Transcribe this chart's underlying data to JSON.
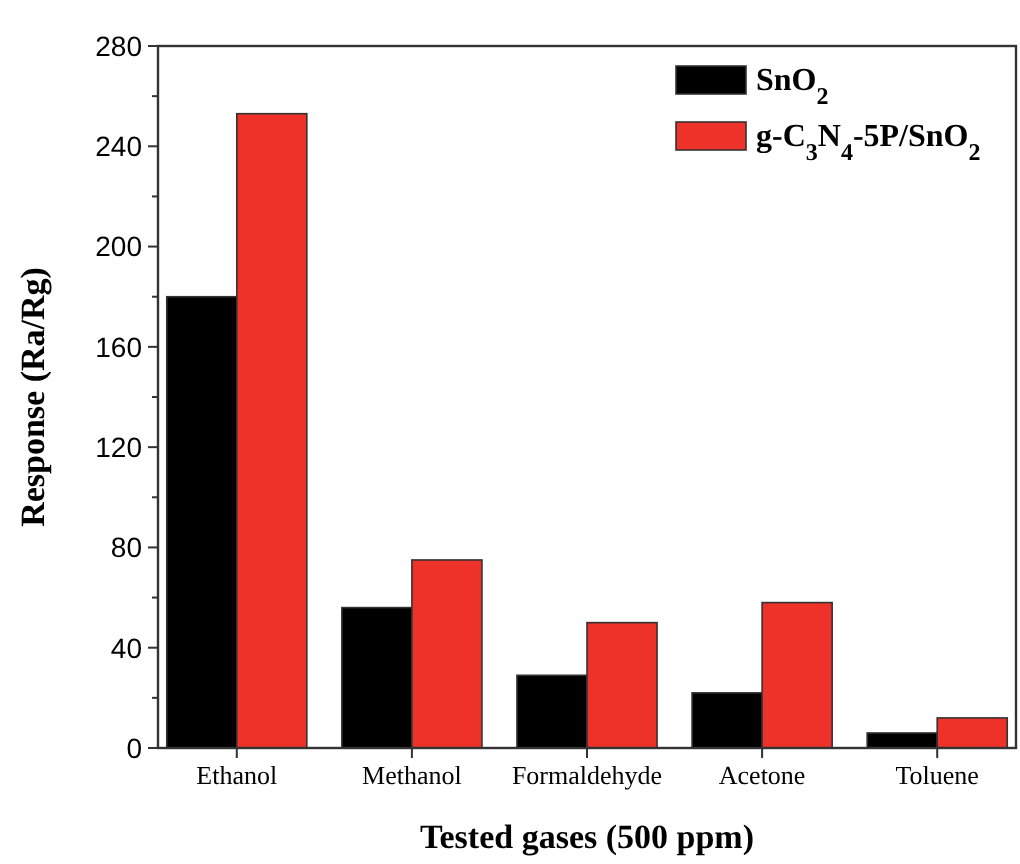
{
  "chart_data": {
    "type": "bar",
    "xlabel": "Tested gases (500 ppm)",
    "ylabel": "Response (Ra/Rg)",
    "categories": [
      "Ethanol",
      "Methanol",
      "Formaldehyde",
      "Acetone",
      "Toluene"
    ],
    "series": [
      {
        "name": "SnO$_{2}$",
        "color": "#000000",
        "values": [
          180,
          56,
          29,
          22,
          6
        ]
      },
      {
        "name": "g-C$_{3}$N$_{4}$-5P/SnO$_{2}$",
        "color": "#ee3129",
        "values": [
          253,
          75,
          50,
          58,
          12
        ]
      }
    ],
    "ylim": [
      0,
      280
    ],
    "yticks": [
      0,
      {
        "value": 20,
        "label": null
      },
      40,
      {
        "value": 60,
        "label": null
      },
      80,
      {
        "value": 100,
        "label": null
      },
      120,
      {
        "value": 140,
        "label": null
      },
      160,
      {
        "value": 180,
        "label": null
      },
      200,
      {
        "value": 220,
        "label": null
      },
      240,
      {
        "value": 260,
        "label": null
      },
      280
    ],
    "grid": false,
    "legend": "top right"
  }
}
